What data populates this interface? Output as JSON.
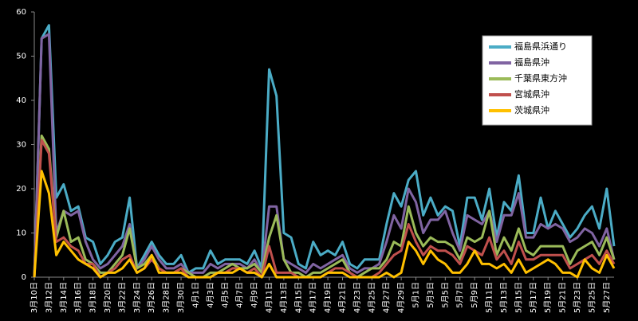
{
  "chart_data": {
    "type": "line",
    "categories": [
      "3月10日",
      null,
      "3月12日",
      null,
      "3月14日",
      null,
      "3月16日",
      null,
      "3月18日",
      null,
      "3月20日",
      null,
      "3月22日",
      null,
      "3月24日",
      null,
      "3月26日",
      null,
      "3月28日",
      null,
      "3月30日",
      null,
      "4月1日",
      null,
      "4月3日",
      null,
      "4月5日",
      null,
      "4月7日",
      null,
      "4月9日",
      null,
      "4月11日",
      null,
      "4月13日",
      null,
      "4月15日",
      null,
      "4月17日",
      null,
      "4月19日",
      null,
      "4月21日",
      null,
      "4月23日",
      null,
      "4月25日",
      null,
      "4月27日",
      null,
      "4月29日",
      null,
      "5月1日",
      null,
      "5月3日",
      null,
      "5月5日",
      null,
      "5月7日",
      null,
      "5月9日",
      null,
      "5月11日",
      null,
      "5月13日",
      null,
      "5月15日",
      null,
      "5月17日",
      null,
      "5月19日",
      null,
      "5月21日",
      null,
      "5月23日",
      null,
      "5月25日",
      null,
      "5月27日",
      null
    ],
    "series": [
      {
        "name": "福島県浜通り",
        "color": "#4bacc6",
        "values": [
          0,
          54,
          57,
          18,
          21,
          15,
          16,
          9,
          8,
          3,
          5,
          8,
          9,
          18,
          2,
          5,
          8,
          5,
          3,
          3,
          5,
          1,
          2,
          2,
          6,
          3,
          4,
          4,
          4,
          3,
          6,
          2,
          47,
          41,
          10,
          9,
          3,
          2,
          8,
          5,
          6,
          5,
          8,
          3,
          2,
          4,
          4,
          4,
          12,
          19,
          16,
          22,
          24,
          14,
          18,
          14,
          16,
          15,
          7,
          18,
          18,
          13,
          20,
          9,
          17,
          15,
          23,
          10,
          10,
          18,
          11,
          15,
          12,
          9,
          11,
          14,
          16,
          11,
          20,
          7
        ]
      },
      {
        "name": "福島県沖",
        "color": "#8064a2",
        "values": [
          0,
          54,
          55,
          10,
          15,
          14,
          15,
          8,
          4,
          2,
          3,
          5,
          7,
          12,
          2,
          4,
          7,
          4,
          2,
          2,
          3,
          1,
          1,
          1,
          3,
          2,
          3,
          3,
          3,
          2,
          4,
          1,
          16,
          16,
          4,
          3,
          2,
          1,
          3,
          2,
          3,
          4,
          5,
          2,
          1,
          2,
          2,
          3,
          8,
          14,
          11,
          20,
          17,
          10,
          13,
          13,
          15,
          10,
          6,
          14,
          13,
          12,
          15,
          8,
          14,
          14,
          19,
          9,
          9,
          12,
          11,
          12,
          11,
          8,
          9,
          11,
          10,
          7,
          11,
          4
        ]
      },
      {
        "name": "千葉県東方沖",
        "color": "#9bbb59",
        "values": [
          0,
          32,
          29,
          9,
          15,
          8,
          9,
          4,
          3,
          1,
          1,
          3,
          5,
          11,
          2,
          3,
          5,
          2,
          1,
          1,
          2,
          1,
          0,
          0,
          1,
          1,
          2,
          3,
          2,
          2,
          3,
          1,
          9,
          14,
          4,
          1,
          1,
          0,
          1,
          1,
          2,
          3,
          4,
          1,
          0,
          1,
          2,
          2,
          4,
          8,
          7,
          16,
          10,
          7,
          9,
          8,
          8,
          7,
          4,
          9,
          8,
          9,
          15,
          5,
          9,
          6,
          11,
          6,
          5,
          7,
          7,
          7,
          7,
          3,
          6,
          7,
          8,
          5,
          9,
          4
        ]
      },
      {
        "name": "宮城県沖",
        "color": "#c0504d",
        "values": [
          0,
          31,
          28,
          8,
          9,
          7,
          6,
          3,
          3,
          0,
          1,
          2,
          4,
          5,
          1,
          2,
          4,
          2,
          1,
          1,
          2,
          0,
          0,
          0,
          0,
          1,
          1,
          2,
          2,
          1,
          2,
          0,
          7,
          1,
          1,
          1,
          0,
          0,
          0,
          0,
          1,
          2,
          2,
          1,
          0,
          0,
          0,
          1,
          3,
          5,
          6,
          12,
          8,
          5,
          7,
          6,
          6,
          5,
          3,
          7,
          6,
          5,
          9,
          4,
          6,
          3,
          8,
          4,
          4,
          5,
          5,
          5,
          5,
          2,
          3,
          4,
          5,
          3,
          6,
          3
        ]
      },
      {
        "name": "茨城県沖",
        "color": "#ffc000",
        "values": [
          0,
          24,
          19,
          5,
          8,
          6,
          4,
          3,
          2,
          0,
          1,
          1,
          2,
          4,
          1,
          2,
          5,
          1,
          1,
          1,
          1,
          0,
          0,
          0,
          0,
          1,
          1,
          1,
          2,
          1,
          1,
          0,
          3,
          0,
          0,
          0,
          0,
          0,
          0,
          0,
          1,
          1,
          1,
          0,
          0,
          0,
          0,
          0,
          1,
          0,
          1,
          8,
          6,
          3,
          6,
          4,
          3,
          1,
          1,
          3,
          6,
          3,
          3,
          2,
          3,
          1,
          4,
          1,
          2,
          3,
          4,
          3,
          1,
          1,
          0,
          4,
          2,
          1,
          5,
          2
        ]
      }
    ],
    "ylim": [
      0,
      60
    ],
    "yticks": [
      0,
      10,
      20,
      30,
      40,
      50,
      60
    ],
    "grid": false,
    "legend": "upper right"
  }
}
